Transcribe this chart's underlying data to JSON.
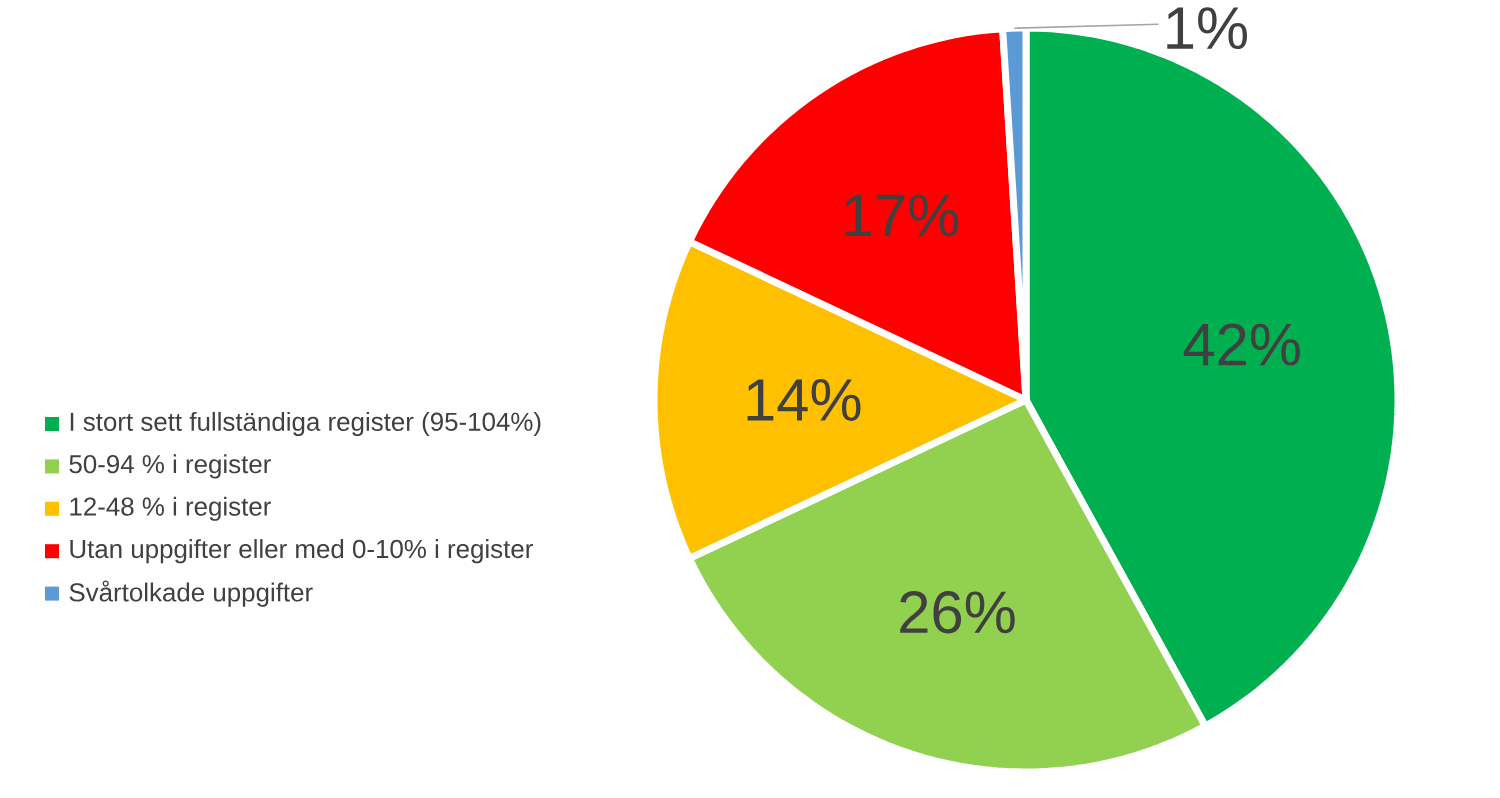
{
  "chart_data": {
    "type": "pie",
    "categories": [
      "I stort sett fullständiga register (95-104%)",
      "50-94 % i register",
      "12-48 % i register",
      "Utan uppgifter eller med 0-10% i register",
      "Svårtolkade uppgifter"
    ],
    "values": [
      42,
      26,
      14,
      17,
      1
    ],
    "colors": [
      "#00b050",
      "#92d050",
      "#ffc000",
      "#ff0000",
      "#5b9bd5"
    ],
    "value_labels": [
      "42%",
      "26%",
      "14%",
      "17%",
      "1%"
    ],
    "legend": "left"
  }
}
